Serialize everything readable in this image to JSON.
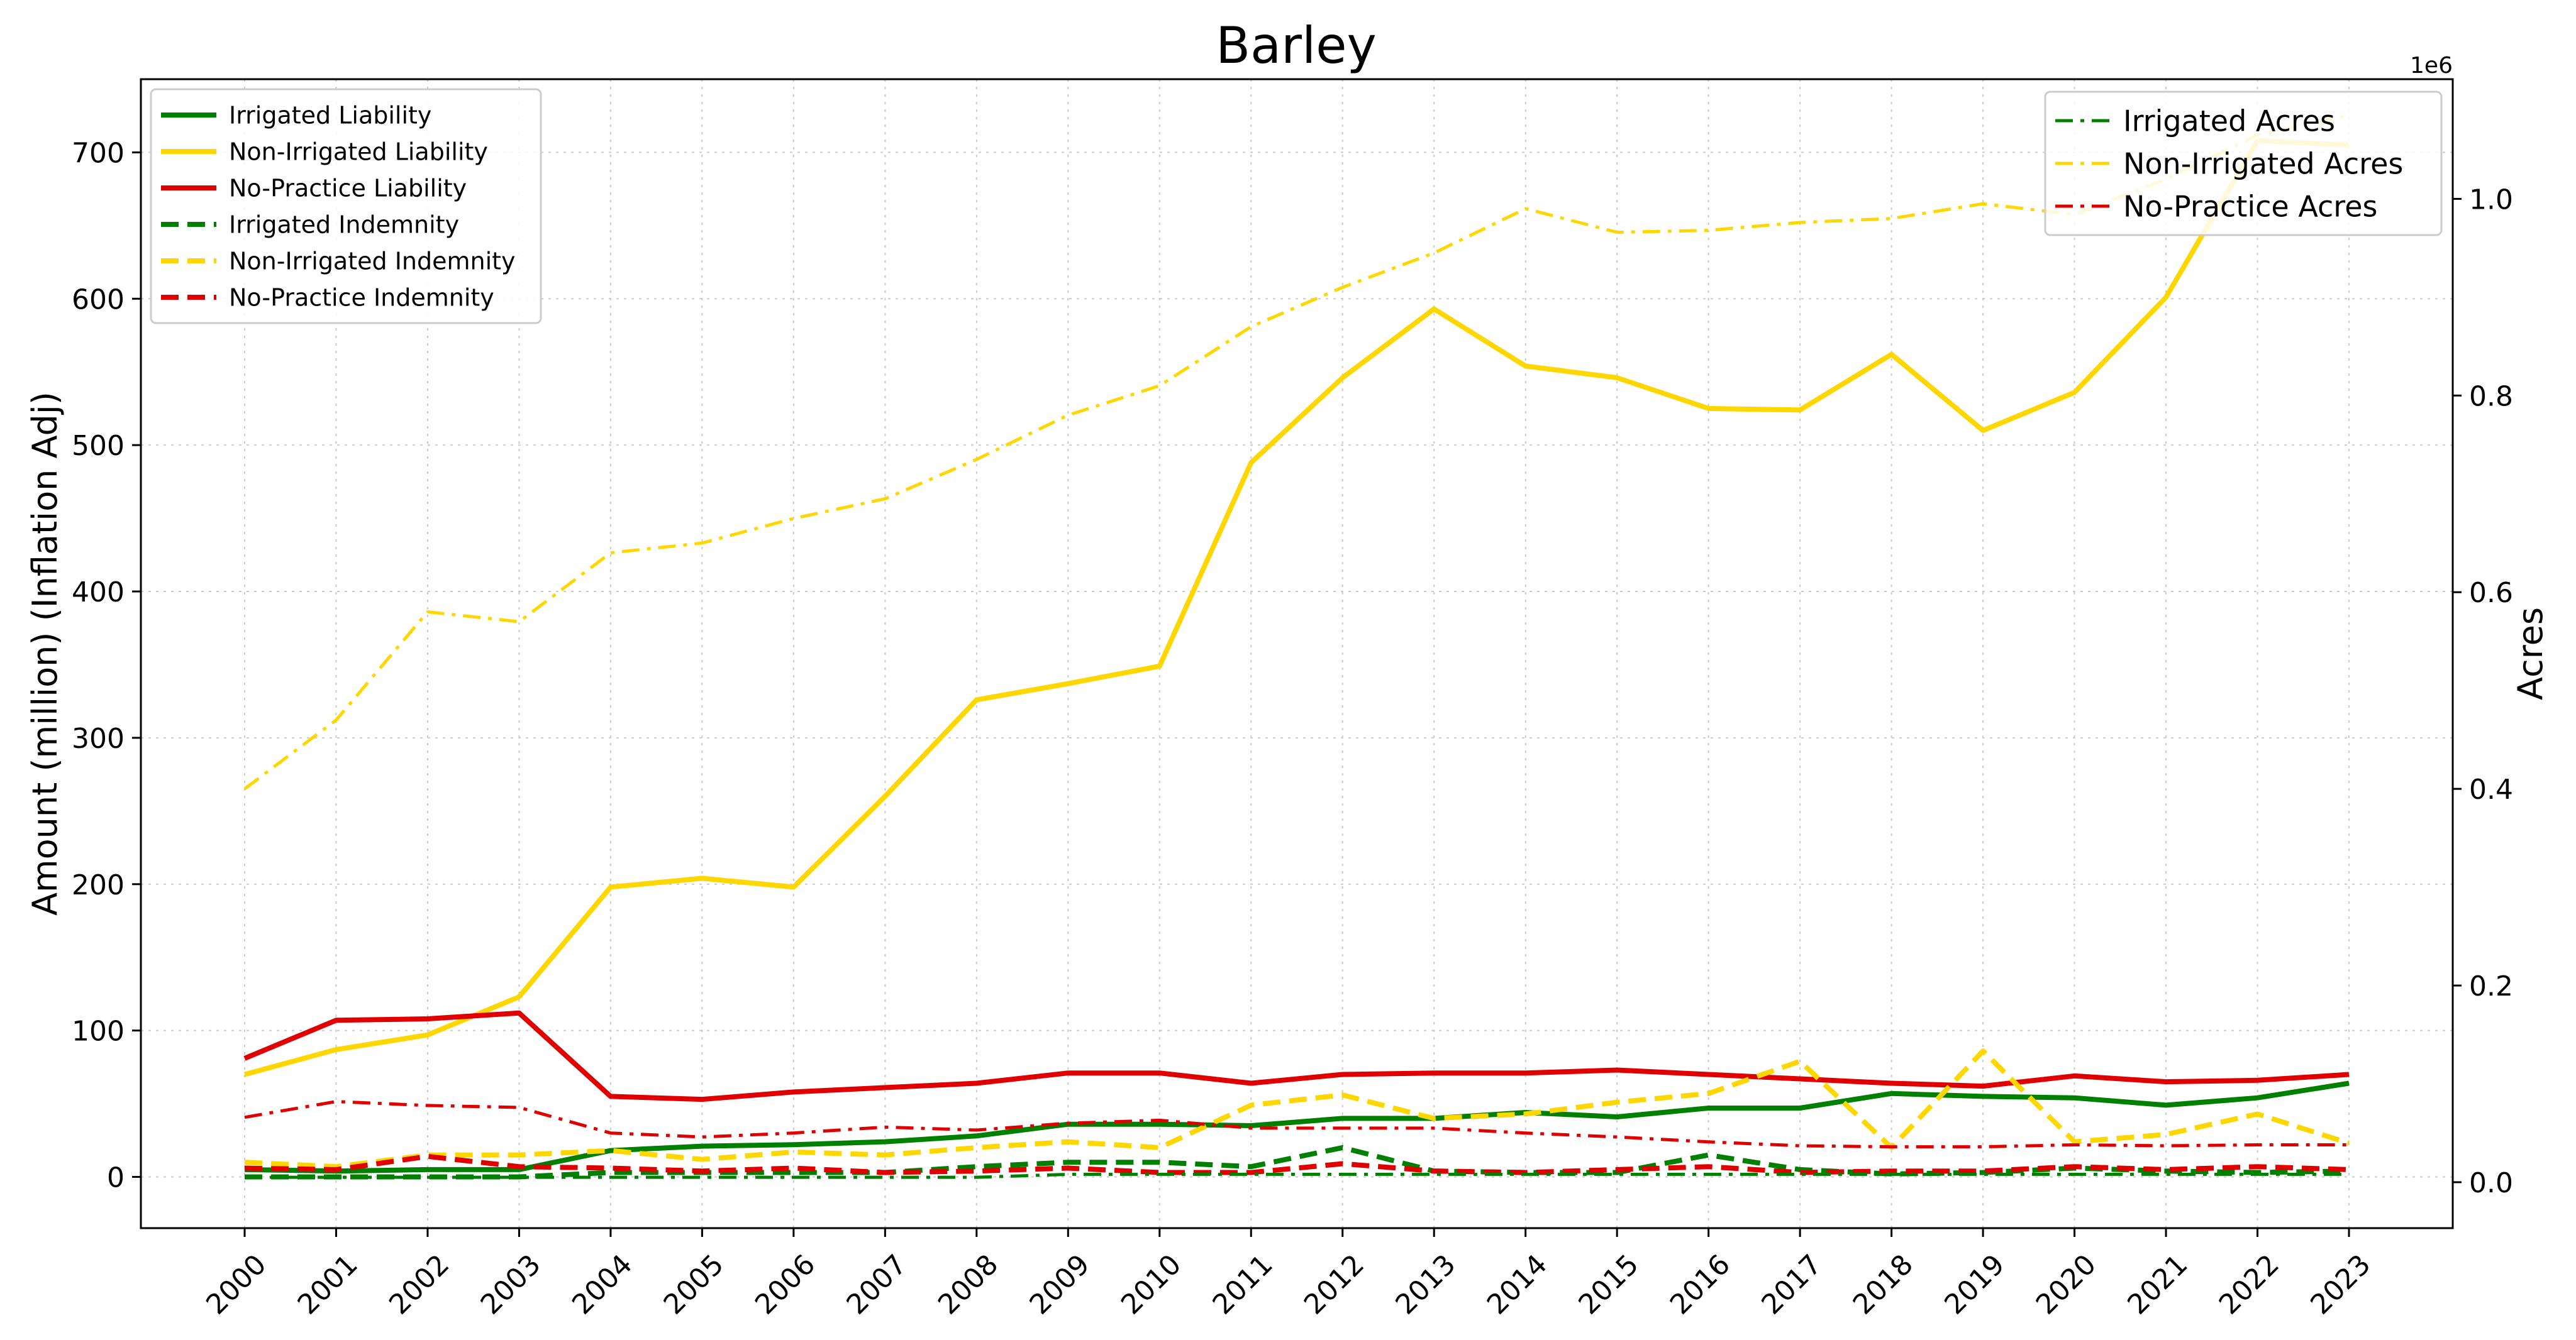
{
  "chart_data": {
    "type": "line",
    "title": "Barley",
    "ylabel": "Amount (million) (Inflation Adj)",
    "y2label": "Acres",
    "y2_offset_text": "1e6",
    "x": [
      "2000",
      "2001",
      "2002",
      "2003",
      "2004",
      "2005",
      "2006",
      "2007",
      "2008",
      "2009",
      "2010",
      "2011",
      "2012",
      "2013",
      "2014",
      "2015",
      "2016",
      "2017",
      "2018",
      "2019",
      "2020",
      "2021",
      "2022",
      "2023"
    ],
    "ylim": [
      -35,
      750
    ],
    "yticks": [
      0,
      100,
      200,
      300,
      400,
      500,
      600,
      700
    ],
    "y2lim": [
      -0.0467,
      1.1217
    ],
    "y2ticks": [
      0.0,
      0.2,
      0.4,
      0.6,
      0.8,
      1.0
    ],
    "y2tick_labels": [
      "0.0",
      "0.2",
      "0.4",
      "0.6",
      "0.8",
      "1.0"
    ],
    "grid": true,
    "legend_left_placement": "upper left",
    "legend_right_placement": "upper right",
    "colors": {
      "irrigated": "#008000",
      "non_irrigated": "#FFD700",
      "no_practice": "#E00000"
    },
    "series": [
      {
        "name": "Irrigated Liability",
        "axis": "left",
        "color": "#008000",
        "style": "solid",
        "values": [
          5,
          4,
          5,
          5,
          18,
          21,
          22,
          24,
          28,
          36,
          36,
          35,
          40,
          40,
          44,
          41,
          47,
          47,
          57,
          55,
          54,
          49,
          54,
          64
        ]
      },
      {
        "name": "Non-Irrigated Liability",
        "axis": "left",
        "color": "#FFD700",
        "style": "solid",
        "values": [
          70,
          87,
          97,
          123,
          198,
          204,
          198,
          260,
          326,
          337,
          349,
          488,
          546,
          593,
          554,
          546,
          525,
          524,
          562,
          510,
          536,
          601,
          708,
          705
        ]
      },
      {
        "name": "No-Practice Liability",
        "axis": "left",
        "color": "#E00000",
        "style": "solid",
        "values": [
          81,
          107,
          108,
          112,
          55,
          53,
          58,
          61,
          64,
          71,
          71,
          64,
          70,
          71,
          71,
          73,
          70,
          67,
          64,
          62,
          69,
          65,
          66,
          70
        ]
      },
      {
        "name": "Irrigated Indemnity",
        "axis": "left",
        "color": "#008000",
        "style": "dashed",
        "values": [
          0,
          0,
          0,
          0,
          3,
          3,
          3,
          3,
          7,
          10,
          10,
          7,
          20,
          4,
          3,
          3,
          15,
          5,
          2,
          3,
          6,
          4,
          3,
          4
        ]
      },
      {
        "name": "Non-Irrigated Indemnity",
        "axis": "left",
        "color": "#FFD700",
        "style": "dashed",
        "values": [
          10,
          7,
          15,
          15,
          18,
          12,
          17,
          15,
          20,
          24,
          20,
          49,
          56,
          40,
          43,
          51,
          57,
          79,
          20,
          86,
          24,
          29,
          43,
          23
        ]
      },
      {
        "name": "No-Practice Indemnity",
        "axis": "left",
        "color": "#E00000",
        "style": "dashed",
        "values": [
          6,
          5,
          14,
          7,
          6,
          4,
          6,
          3,
          4,
          6,
          3,
          3,
          9,
          4,
          3,
          5,
          7,
          3,
          4,
          4,
          7,
          5,
          7,
          5
        ]
      },
      {
        "name": "Irrigated Acres",
        "axis": "right",
        "color": "#008000",
        "style": "dashdot",
        "values": [
          0.005,
          0.005,
          0.005,
          0.005,
          0.005,
          0.005,
          0.005,
          0.005,
          0.005,
          0.008,
          0.008,
          0.008,
          0.008,
          0.008,
          0.008,
          0.008,
          0.008,
          0.008,
          0.008,
          0.008,
          0.008,
          0.008,
          0.008,
          0.008
        ]
      },
      {
        "name": "Non-Irrigated Acres",
        "axis": "right",
        "color": "#FFD700",
        "style": "dashdot",
        "values": [
          0.4,
          0.47,
          0.58,
          0.57,
          0.64,
          0.65,
          0.675,
          0.695,
          0.735,
          0.78,
          0.81,
          0.87,
          0.91,
          0.945,
          0.99,
          0.966,
          0.968,
          0.976,
          0.98,
          0.995,
          0.984,
          1.02,
          1.065,
          1.085
        ]
      },
      {
        "name": "No-Practice Acres",
        "axis": "right",
        "color": "#E00000",
        "style": "dashdot",
        "values": [
          0.066,
          0.082,
          0.078,
          0.076,
          0.05,
          0.046,
          0.05,
          0.056,
          0.053,
          0.06,
          0.063,
          0.055,
          0.055,
          0.055,
          0.05,
          0.046,
          0.041,
          0.037,
          0.036,
          0.036,
          0.038,
          0.037,
          0.038,
          0.038
        ]
      }
    ]
  }
}
